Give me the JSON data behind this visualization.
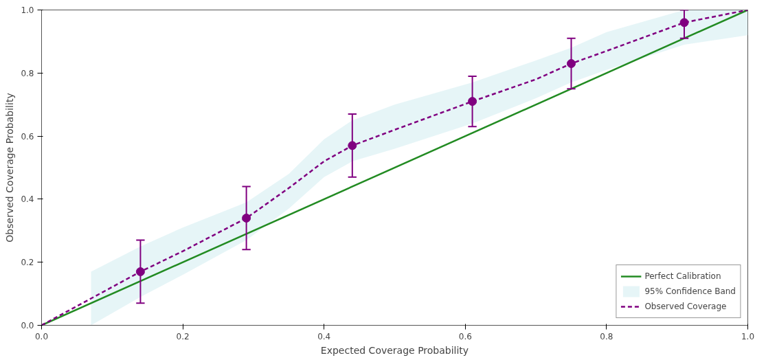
{
  "chart_data": {
    "type": "line",
    "xlabel": "Expected Coverage Probability",
    "ylabel": "Observed Coverage Probability",
    "xlim": [
      0,
      1
    ],
    "ylim": [
      0,
      1
    ],
    "xticks": [
      {
        "value": 0,
        "label": "0.0"
      },
      0.2,
      0.4,
      0.6,
      0.8,
      {
        "value": 1,
        "label": "1.0"
      }
    ],
    "yticks": [
      {
        "value": 0,
        "label": "0.0"
      },
      0.2,
      0.4,
      0.6,
      0.8,
      {
        "value": 1,
        "label": "1.0"
      }
    ],
    "grid": false,
    "legend": "bottom right",
    "series": [
      {
        "name": "Perfect Calibration",
        "color": "#228b22",
        "line_style": "solid",
        "marker": "none",
        "x": [
          0,
          1
        ],
        "values": [
          0,
          1
        ]
      },
      {
        "name": "95% Confidence Band",
        "type": "area",
        "color": "#e0f2f5"
      },
      {
        "name": "Observed Coverage",
        "color": "#800080",
        "line_style": "dashed",
        "marker": "none",
        "x": [
          0,
          0.07,
          0.14,
          0.2,
          0.29,
          0.35,
          0.4,
          0.44,
          0.5,
          0.61,
          0.7,
          0.75,
          0.8,
          0.91,
          1.0
        ],
        "values": [
          0,
          0.085,
          0.17,
          0.235,
          0.34,
          0.435,
          0.52,
          0.57,
          0.62,
          0.71,
          0.78,
          0.83,
          0.87,
          0.96,
          1.0
        ],
        "lower": [
          null,
          0.0,
          0.09,
          0.16,
          0.27,
          0.37,
          0.47,
          0.52,
          0.56,
          0.64,
          0.72,
          0.77,
          0.81,
          0.89,
          0.92
        ],
        "upper": [
          null,
          0.17,
          0.25,
          0.31,
          0.39,
          0.48,
          0.59,
          0.65,
          0.7,
          0.77,
          0.84,
          0.88,
          0.93,
          1.0,
          1.0
        ]
      },
      {
        "type": "scatter",
        "color": "#800080",
        "marker": "circle",
        "x": [
          0.14,
          0.29,
          0.44,
          0.61,
          0.75,
          0.91
        ],
        "values": [
          0.17,
          0.34,
          0.57,
          0.71,
          0.83,
          0.96
        ],
        "errors": [
          [
            0.07,
            0.27
          ],
          [
            0.24,
            0.44
          ],
          [
            0.47,
            0.67
          ],
          [
            0.63,
            0.79
          ],
          [
            0.75,
            0.91
          ],
          [
            0.91,
            1.0
          ]
        ]
      }
    ]
  }
}
